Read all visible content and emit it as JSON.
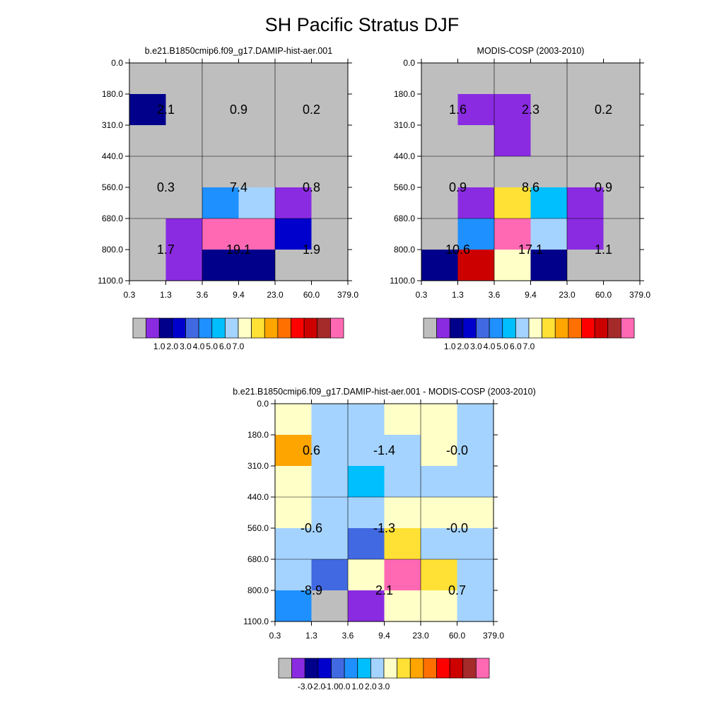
{
  "title": "SH Pacific Stratus DJF",
  "chart_data": [
    {
      "type": "heatmap",
      "title": "b.e21.B1850cmip6.f09_g17.DAMIP-hist-aer.001",
      "x_tick_labels": [
        "0.3",
        "1.3",
        "3.6",
        "9.4",
        "23.0",
        "60.0",
        "379.0"
      ],
      "y_tick_labels": [
        "0.0",
        "180.0",
        "310.0",
        "440.0",
        "560.0",
        "680.0",
        "800.0",
        "1100.0"
      ],
      "colorbar": "abs",
      "cells": [
        [
          "#bebebe",
          "#bebebe",
          "#bebebe",
          "#bebebe",
          "#bebebe",
          "#bebebe"
        ],
        [
          "#00008b",
          "#bebebe",
          "#bebebe",
          "#bebebe",
          "#bebebe",
          "#bebebe"
        ],
        [
          "#bebebe",
          "#bebebe",
          "#bebebe",
          "#bebebe",
          "#bebebe",
          "#bebebe"
        ],
        [
          "#bebebe",
          "#bebebe",
          "#bebebe",
          "#bebebe",
          "#bebebe",
          "#bebebe"
        ],
        [
          "#bebebe",
          "#bebebe",
          "#1e90ff",
          "#a4d3ff",
          "#8a2be2",
          "#bebebe"
        ],
        [
          "#bebebe",
          "#8a2be2",
          "#ff69b4",
          "#ff69b4",
          "#0000cd",
          "#bebebe"
        ],
        [
          "#bebebe",
          "#8a2be2",
          "#00008b",
          "#00008b",
          "#bebebe",
          "#bebebe"
        ]
      ],
      "totals": [
        [
          "2.1",
          "0.9",
          "0.2"
        ],
        [
          "0.3",
          "7.4",
          "0.8"
        ],
        [
          "1.7",
          "19.1",
          "1.9"
        ]
      ]
    },
    {
      "type": "heatmap",
      "title": "MODIS-COSP (2003-2010)",
      "x_tick_labels": [
        "0.3",
        "1.3",
        "3.6",
        "9.4",
        "23.0",
        "60.0",
        "379.0"
      ],
      "y_tick_labels": [
        "0.0",
        "180.0",
        "310.0",
        "440.0",
        "560.0",
        "680.0",
        "800.0",
        "1100.0"
      ],
      "colorbar": "abs",
      "cells": [
        [
          "#bebebe",
          "#bebebe",
          "#bebebe",
          "#bebebe",
          "#bebebe",
          "#bebebe"
        ],
        [
          "#bebebe",
          "#8a2be2",
          "#8a2be2",
          "#bebebe",
          "#bebebe",
          "#bebebe"
        ],
        [
          "#bebebe",
          "#bebebe",
          "#8a2be2",
          "#bebebe",
          "#bebebe",
          "#bebebe"
        ],
        [
          "#bebebe",
          "#bebebe",
          "#bebebe",
          "#bebebe",
          "#bebebe",
          "#bebebe"
        ],
        [
          "#bebebe",
          "#8a2be2",
          "#ffe135",
          "#00bfff",
          "#8a2be2",
          "#bebebe"
        ],
        [
          "#bebebe",
          "#1e90ff",
          "#ff69b4",
          "#a4d3ff",
          "#8a2be2",
          "#bebebe"
        ],
        [
          "#00008b",
          "#cd0000",
          "#ffffc8",
          "#00008b",
          "#bebebe",
          "#bebebe"
        ]
      ],
      "totals": [
        [
          "1.6",
          "2.3",
          "0.2"
        ],
        [
          "0.9",
          "8.6",
          "0.9"
        ],
        [
          "10.6",
          "17.1",
          "1.1"
        ]
      ]
    },
    {
      "type": "heatmap",
      "title": "b.e21.B1850cmip6.f09_g17.DAMIP-hist-aer.001 - MODIS-COSP (2003-2010)",
      "x_tick_labels": [
        "0.3",
        "1.3",
        "3.6",
        "9.4",
        "23.0",
        "60.0",
        "379.0"
      ],
      "y_tick_labels": [
        "0.0",
        "180.0",
        "310.0",
        "440.0",
        "560.0",
        "680.0",
        "800.0",
        "1100.0"
      ],
      "colorbar": "diff",
      "cells": [
        [
          "#ffffc8",
          "#a4d3ff",
          "#a4d3ff",
          "#ffffc8",
          "#ffffc8",
          "#a4d3ff"
        ],
        [
          "#ffa500",
          "#a4d3ff",
          "#a4d3ff",
          "#a4d3ff",
          "#ffffc8",
          "#a4d3ff"
        ],
        [
          "#ffffc8",
          "#a4d3ff",
          "#00bfff",
          "#a4d3ff",
          "#a4d3ff",
          "#a4d3ff"
        ],
        [
          "#ffffc8",
          "#a4d3ff",
          "#a4d3ff",
          "#ffffc8",
          "#ffffc8",
          "#ffffc8"
        ],
        [
          "#a4d3ff",
          "#a4d3ff",
          "#4169e1",
          "#ffe135",
          "#a4d3ff",
          "#a4d3ff"
        ],
        [
          "#a4d3ff",
          "#4169e1",
          "#ffffc8",
          "#ff69b4",
          "#ffe135",
          "#a4d3ff"
        ],
        [
          "#1e90ff",
          "#bebebe",
          "#8a2be2",
          "#ffffc8",
          "#ffffc8",
          "#a4d3ff"
        ]
      ],
      "totals": [
        [
          "0.6",
          "-1.4",
          "-0.0"
        ],
        [
          "-0.6",
          "-1.3",
          "-0.0"
        ],
        [
          "-8.9",
          "2.1",
          "0.7"
        ]
      ]
    }
  ],
  "colorbars": {
    "abs": {
      "colors": [
        "#bebebe",
        "#8a2be2",
        "#00008b",
        "#0000cd",
        "#4169e1",
        "#1e90ff",
        "#00bfff",
        "#a4d3ff",
        "#ffffc8",
        "#ffe135",
        "#ffa500",
        "#ff7000",
        "#ff0000",
        "#cd0000",
        "#a52a2a",
        "#ff69b4"
      ],
      "labels": [
        "1.0",
        "2.0",
        "3.0",
        "4.0",
        "5.0",
        "6.0",
        "7.0"
      ]
    },
    "diff": {
      "colors": [
        "#bebebe",
        "#8a2be2",
        "#00008b",
        "#0000cd",
        "#4169e1",
        "#1e90ff",
        "#00bfff",
        "#a4d3ff",
        "#ffffc8",
        "#ffe135",
        "#ffa500",
        "#ff7000",
        "#ff0000",
        "#cd0000",
        "#a52a2a",
        "#ff69b4"
      ],
      "labels": [
        "-3.0",
        "-2.0",
        "-1.0",
        "0.0",
        "1.0",
        "2.0",
        "3.0"
      ]
    }
  }
}
